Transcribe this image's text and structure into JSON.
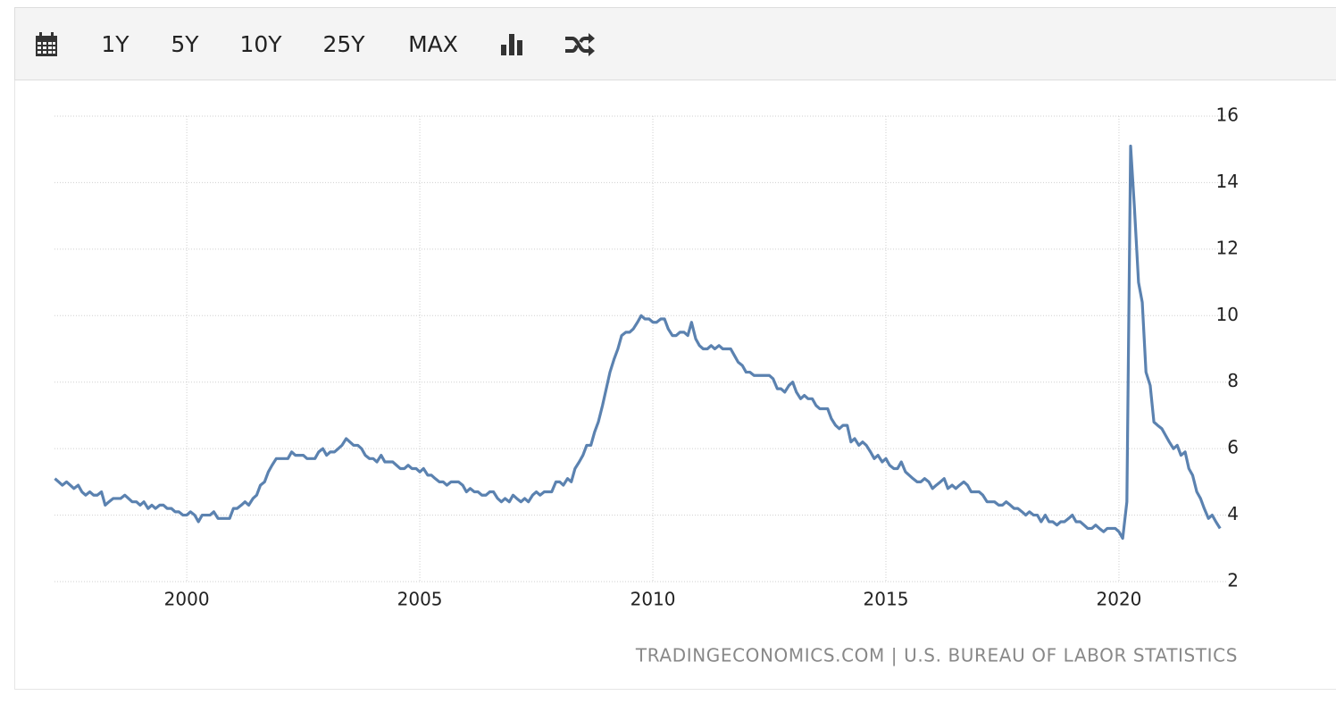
{
  "toolbar": {
    "buttons": [
      "1Y",
      "5Y",
      "10Y",
      "25Y",
      "MAX"
    ]
  },
  "chart_data": {
    "type": "line",
    "source": "TRADINGECONOMICS.COM | U.S. BUREAU OF LABOR STATISTICS",
    "color": "#5b82b0",
    "grid": true,
    "xlim": [
      1997.2,
      2022.3
    ],
    "xticks": [
      2000,
      2005,
      2010,
      2015,
      2020
    ],
    "ylim": [
      2,
      16
    ],
    "yticks": [
      2,
      4,
      6,
      8,
      10,
      12,
      14,
      16
    ],
    "x": [
      1997.17,
      1997.25,
      1997.33,
      1997.42,
      1997.5,
      1997.58,
      1997.67,
      1997.75,
      1997.83,
      1997.92,
      1998,
      1998.08,
      1998.17,
      1998.25,
      1998.33,
      1998.42,
      1998.5,
      1998.58,
      1998.67,
      1998.75,
      1998.83,
      1998.92,
      1999,
      1999.08,
      1999.17,
      1999.25,
      1999.33,
      1999.42,
      1999.5,
      1999.58,
      1999.67,
      1999.75,
      1999.83,
      1999.92,
      2000,
      2000.08,
      2000.17,
      2000.25,
      2000.33,
      2000.42,
      2000.5,
      2000.58,
      2000.67,
      2000.75,
      2000.83,
      2000.92,
      2001,
      2001.08,
      2001.17,
      2001.25,
      2001.33,
      2001.42,
      2001.5,
      2001.58,
      2001.67,
      2001.75,
      2001.83,
      2001.92,
      2002,
      2002.08,
      2002.17,
      2002.25,
      2002.33,
      2002.42,
      2002.5,
      2002.58,
      2002.67,
      2002.75,
      2002.83,
      2002.92,
      2003,
      2003.08,
      2003.17,
      2003.25,
      2003.33,
      2003.42,
      2003.5,
      2003.58,
      2003.67,
      2003.75,
      2003.83,
      2003.92,
      2004,
      2004.08,
      2004.17,
      2004.25,
      2004.33,
      2004.42,
      2004.5,
      2004.58,
      2004.67,
      2004.75,
      2004.83,
      2004.92,
      2005,
      2005.08,
      2005.17,
      2005.25,
      2005.33,
      2005.42,
      2005.5,
      2005.58,
      2005.67,
      2005.75,
      2005.83,
      2005.92,
      2006,
      2006.08,
      2006.17,
      2006.25,
      2006.33,
      2006.42,
      2006.5,
      2006.58,
      2006.67,
      2006.75,
      2006.83,
      2006.92,
      2007,
      2007.08,
      2007.17,
      2007.25,
      2007.33,
      2007.42,
      2007.5,
      2007.58,
      2007.67,
      2007.75,
      2007.83,
      2007.92,
      2008,
      2008.08,
      2008.17,
      2008.25,
      2008.33,
      2008.42,
      2008.5,
      2008.58,
      2008.67,
      2008.75,
      2008.83,
      2008.92,
      2009,
      2009.08,
      2009.17,
      2009.25,
      2009.33,
      2009.42,
      2009.5,
      2009.58,
      2009.67,
      2009.75,
      2009.83,
      2009.92,
      2010,
      2010.08,
      2010.17,
      2010.25,
      2010.33,
      2010.42,
      2010.5,
      2010.58,
      2010.67,
      2010.75,
      2010.83,
      2010.92,
      2011,
      2011.08,
      2011.17,
      2011.25,
      2011.33,
      2011.42,
      2011.5,
      2011.58,
      2011.67,
      2011.75,
      2011.83,
      2011.92,
      2012,
      2012.08,
      2012.17,
      2012.25,
      2012.33,
      2012.42,
      2012.5,
      2012.58,
      2012.67,
      2012.75,
      2012.83,
      2012.92,
      2013,
      2013.08,
      2013.17,
      2013.25,
      2013.33,
      2013.42,
      2013.5,
      2013.58,
      2013.67,
      2013.75,
      2013.83,
      2013.92,
      2014,
      2014.08,
      2014.17,
      2014.25,
      2014.33,
      2014.42,
      2014.5,
      2014.58,
      2014.67,
      2014.75,
      2014.83,
      2014.92,
      2015,
      2015.08,
      2015.17,
      2015.25,
      2015.33,
      2015.42,
      2015.5,
      2015.58,
      2015.67,
      2015.75,
      2015.83,
      2015.92,
      2016,
      2016.08,
      2016.17,
      2016.25,
      2016.33,
      2016.42,
      2016.5,
      2016.58,
      2016.67,
      2016.75,
      2016.83,
      2016.92,
      2017,
      2017.08,
      2017.17,
      2017.25,
      2017.33,
      2017.42,
      2017.5,
      2017.58,
      2017.67,
      2017.75,
      2017.83,
      2017.92,
      2018,
      2018.08,
      2018.17,
      2018.25,
      2018.33,
      2018.42,
      2018.5,
      2018.58,
      2018.67,
      2018.75,
      2018.83,
      2018.92,
      2019,
      2019.08,
      2019.17,
      2019.25,
      2019.33,
      2019.42,
      2019.5,
      2019.58,
      2019.67,
      2019.75,
      2019.83,
      2019.92,
      2020,
      2020.08,
      2020.17,
      2020.25,
      2020.33,
      2020.42,
      2020.5,
      2020.58,
      2020.67,
      2020.75,
      2020.83,
      2020.92,
      2021,
      2021.08,
      2021.17,
      2021.25,
      2021.33,
      2021.42,
      2021.5,
      2021.58,
      2021.67,
      2021.75,
      2021.83,
      2021.92,
      2022,
      2022.08,
      2022.17
    ],
    "values": [
      5.1,
      5.0,
      4.9,
      5.0,
      4.9,
      4.8,
      4.9,
      4.7,
      4.6,
      4.7,
      4.6,
      4.6,
      4.7,
      4.3,
      4.4,
      4.5,
      4.5,
      4.5,
      4.6,
      4.5,
      4.4,
      4.4,
      4.3,
      4.4,
      4.2,
      4.3,
      4.2,
      4.3,
      4.3,
      4.2,
      4.2,
      4.1,
      4.1,
      4.0,
      4.0,
      4.1,
      4.0,
      3.8,
      4.0,
      4.0,
      4.0,
      4.1,
      3.9,
      3.9,
      3.9,
      3.9,
      4.2,
      4.2,
      4.3,
      4.4,
      4.3,
      4.5,
      4.6,
      4.9,
      5.0,
      5.3,
      5.5,
      5.7,
      5.7,
      5.7,
      5.7,
      5.9,
      5.8,
      5.8,
      5.8,
      5.7,
      5.7,
      5.7,
      5.9,
      6.0,
      5.8,
      5.9,
      5.9,
      6.0,
      6.1,
      6.3,
      6.2,
      6.1,
      6.1,
      6.0,
      5.8,
      5.7,
      5.7,
      5.6,
      5.8,
      5.6,
      5.6,
      5.6,
      5.5,
      5.4,
      5.4,
      5.5,
      5.4,
      5.4,
      5.3,
      5.4,
      5.2,
      5.2,
      5.1,
      5.0,
      5.0,
      4.9,
      5.0,
      5.0,
      5.0,
      4.9,
      4.7,
      4.8,
      4.7,
      4.7,
      4.6,
      4.6,
      4.7,
      4.7,
      4.5,
      4.4,
      4.5,
      4.4,
      4.6,
      4.5,
      4.4,
      4.5,
      4.4,
      4.6,
      4.7,
      4.6,
      4.7,
      4.7,
      4.7,
      5.0,
      5.0,
      4.9,
      5.1,
      5.0,
      5.4,
      5.6,
      5.8,
      6.1,
      6.1,
      6.5,
      6.8,
      7.3,
      7.8,
      8.3,
      8.7,
      9.0,
      9.4,
      9.5,
      9.5,
      9.6,
      9.8,
      10.0,
      9.9,
      9.9,
      9.8,
      9.8,
      9.9,
      9.9,
      9.6,
      9.4,
      9.4,
      9.5,
      9.5,
      9.4,
      9.8,
      9.3,
      9.1,
      9.0,
      9.0,
      9.1,
      9.0,
      9.1,
      9.0,
      9.0,
      9.0,
      8.8,
      8.6,
      8.5,
      8.3,
      8.3,
      8.2,
      8.2,
      8.2,
      8.2,
      8.2,
      8.1,
      7.8,
      7.8,
      7.7,
      7.9,
      8.0,
      7.7,
      7.5,
      7.6,
      7.5,
      7.5,
      7.3,
      7.2,
      7.2,
      7.2,
      6.9,
      6.7,
      6.6,
      6.7,
      6.7,
      6.2,
      6.3,
      6.1,
      6.2,
      6.1,
      5.9,
      5.7,
      5.8,
      5.6,
      5.7,
      5.5,
      5.4,
      5.4,
      5.6,
      5.3,
      5.2,
      5.1,
      5.0,
      5.0,
      5.1,
      5.0,
      4.8,
      4.9,
      5.0,
      5.1,
      4.8,
      4.9,
      4.8,
      4.9,
      5.0,
      4.9,
      4.7,
      4.7,
      4.7,
      4.6,
      4.4,
      4.4,
      4.4,
      4.3,
      4.3,
      4.4,
      4.3,
      4.2,
      4.2,
      4.1,
      4.0,
      4.1,
      4.0,
      4.0,
      3.8,
      4.0,
      3.8,
      3.8,
      3.7,
      3.8,
      3.8,
      3.9,
      4.0,
      3.8,
      3.8,
      3.7,
      3.6,
      3.6,
      3.7,
      3.6,
      3.5,
      3.6,
      3.6,
      3.6,
      3.5,
      3.3,
      4.4,
      15.1,
      13.3,
      11.0,
      10.4,
      8.3,
      7.9,
      6.8,
      6.7,
      6.6,
      6.4,
      6.2,
      6.0,
      6.1,
      5.8,
      5.9,
      5.4,
      5.2,
      4.7,
      4.5,
      4.2,
      3.9,
      4.0,
      3.8,
      3.6
    ]
  }
}
